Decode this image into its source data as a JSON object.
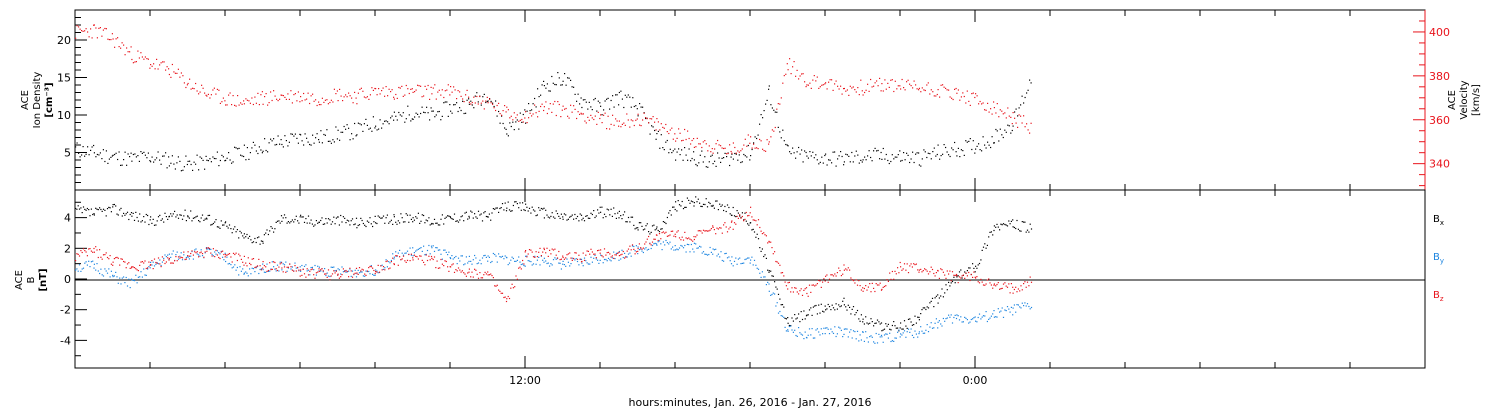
{
  "chart_data": [
    {
      "type": "scatter",
      "panel": "top",
      "left_axis_label_lines": [
        "ACE",
        "Ion Density",
        "[cm⁻³]"
      ],
      "right_axis_label_lines": [
        "ACE",
        "Velocity",
        "[km/s]"
      ],
      "ylim_left": [
        0,
        24
      ],
      "ylim_right": [
        328,
        410
      ],
      "left_ticks": [
        5,
        10,
        15,
        20
      ],
      "right_ticks": [
        340,
        360,
        380,
        400
      ],
      "grid": false,
      "series": [
        {
          "name_hidden": true,
          "axis": "left",
          "color": "#000000",
          "description_key": "density",
          "x_hours": [
            0,
            0.5,
            1,
            1.5,
            2,
            2.5,
            3,
            3.5,
            4,
            4.5,
            5,
            5.5,
            6,
            6.5,
            7,
            7.5,
            8,
            8.5,
            9,
            9.5,
            10,
            10.5,
            11,
            11.5,
            12,
            12.5,
            13,
            13.5,
            14,
            14.5,
            15,
            15.5,
            16,
            16.5,
            17,
            17.5,
            18,
            18.5,
            19,
            19.5,
            20,
            20.5,
            21,
            21.5,
            22,
            22.5,
            23,
            23.5,
            24,
            24.5,
            25,
            25.5
          ],
          "y": [
            5.5,
            5,
            4.5,
            4.2,
            4.5,
            4,
            3.5,
            3.8,
            4.5,
            5,
            6,
            6.5,
            7,
            7,
            7.5,
            8,
            9,
            9.5,
            10.5,
            10,
            11,
            11.5,
            13,
            8,
            10,
            14,
            15,
            12,
            11,
            12.5,
            11,
            7,
            5,
            4.5,
            3.8,
            4.5,
            5,
            13,
            5,
            4.5,
            4.3,
            4.2,
            4.5,
            4.6,
            4.5,
            4.3,
            5,
            5.5,
            6,
            7,
            9,
            15
          ]
        },
        {
          "name_hidden": true,
          "axis": "right",
          "color": "#e8141c",
          "description_key": "velocity",
          "x_hours": [
            0,
            0.5,
            1,
            1.5,
            2,
            2.5,
            3,
            3.5,
            4,
            4.5,
            5,
            5.5,
            6,
            6.5,
            7,
            7.5,
            8,
            8.5,
            9,
            9.5,
            10,
            10.5,
            11,
            11.5,
            12,
            12.5,
            13,
            13.5,
            14,
            14.5,
            15,
            15.5,
            16,
            16.5,
            17,
            17.5,
            18,
            18.5,
            19,
            19.5,
            20,
            20.5,
            21,
            21.5,
            22,
            22.5,
            23,
            23.5,
            24,
            24.5,
            25,
            25.5
          ],
          "y": [
            400,
            401,
            397,
            390,
            386,
            383,
            377,
            372,
            370,
            368,
            370,
            371,
            371,
            370,
            372,
            371,
            373,
            373,
            373,
            373,
            373,
            370,
            368,
            363,
            362,
            366,
            365,
            363,
            360,
            359,
            361,
            358,
            354,
            351,
            348,
            346,
            351,
            348,
            386,
            378,
            377,
            374,
            375,
            376,
            376,
            375,
            374,
            372,
            369,
            365,
            361,
            357
          ]
        }
      ]
    },
    {
      "type": "scatter",
      "panel": "bottom",
      "left_axis_label_lines": [
        "ACE",
        "B",
        "[nT]"
      ],
      "ylim": [
        -5.8,
        5.8
      ],
      "left_ticks": [
        -4,
        -2,
        0,
        2,
        4
      ],
      "zero_line": true,
      "grid": false,
      "legend_position": "right",
      "series": [
        {
          "name": "B",
          "subscript": "x",
          "color": "#000000",
          "x_hours": [
            0,
            0.5,
            1,
            1.5,
            2,
            2.5,
            3,
            3.5,
            4,
            4.5,
            5,
            5.5,
            6,
            6.5,
            7,
            7.5,
            8,
            8.5,
            9,
            9.5,
            10,
            10.5,
            11,
            11.5,
            12,
            12.5,
            13,
            13.5,
            14,
            14.5,
            15,
            15.5,
            16,
            16.5,
            17,
            17.5,
            18,
            18.5,
            19,
            19.5,
            20,
            20.5,
            21,
            21.5,
            22,
            22.5,
            23,
            23.5,
            24,
            24.5,
            25,
            25.5
          ],
          "y": [
            4.5,
            4.3,
            4.6,
            4.2,
            3.8,
            4.1,
            4.2,
            4,
            3.5,
            2.8,
            2.6,
            4,
            3.9,
            3.8,
            3.9,
            3.7,
            3.8,
            3.9,
            4.1,
            3.8,
            4,
            4.2,
            4.1,
            4.8,
            4.7,
            4.3,
            4.1,
            4,
            4.4,
            4.3,
            3.5,
            3.2,
            4.8,
            5.1,
            4.9,
            4.5,
            3.8,
            0.6,
            -2.8,
            -2.2,
            -1.8,
            -1.5,
            -2.6,
            -3,
            -3.1,
            -2.4,
            -1.2,
            0.2,
            0.8,
            3.5,
            3.6,
            3.3
          ]
        },
        {
          "name": "B",
          "subscript": "y",
          "color": "#1f86e0",
          "x_hours": [
            0,
            0.5,
            1,
            1.5,
            2,
            2.5,
            3,
            3.5,
            4,
            4.5,
            5,
            5.5,
            6,
            6.5,
            7,
            7.5,
            8,
            8.5,
            9,
            9.5,
            10,
            10.5,
            11,
            11.5,
            12,
            12.5,
            13,
            13.5,
            14,
            14.5,
            15,
            15.5,
            16,
            16.5,
            17,
            17.5,
            18,
            18.5,
            19,
            19.5,
            20,
            20.5,
            21,
            21.5,
            22,
            22.5,
            23,
            23.5,
            24,
            24.5,
            25,
            25.5
          ],
          "y": [
            0.8,
            0.9,
            0.2,
            -0.3,
            0.8,
            1.5,
            1.6,
            1.8,
            1.4,
            0.3,
            0.8,
            0.9,
            0.7,
            0.6,
            0.5,
            0.5,
            0.6,
            1.5,
            1.8,
            1.9,
            1.5,
            1.2,
            1.4,
            1.3,
            1.2,
            1.3,
            1,
            1.1,
            1.4,
            1.6,
            2,
            2.3,
            2.2,
            2.1,
            1.8,
            1.2,
            1.4,
            -0.5,
            -3.3,
            -3.6,
            -3.3,
            -3.5,
            -3.7,
            -3.9,
            -3.6,
            -3.4,
            -2.8,
            -2.5,
            -2.6,
            -2.3,
            -2,
            -1.7
          ]
        },
        {
          "name": "B",
          "subscript": "z",
          "color": "#e8141c",
          "x_hours": [
            0,
            0.5,
            1,
            1.5,
            2,
            2.5,
            3,
            3.5,
            4,
            4.5,
            5,
            5.5,
            6,
            6.5,
            7,
            7.5,
            8,
            8.5,
            9,
            9.5,
            10,
            10.5,
            11,
            11.5,
            12,
            12.5,
            13,
            13.5,
            14,
            14.5,
            15,
            15.5,
            16,
            16.5,
            17,
            17.5,
            18,
            18.5,
            19,
            19.5,
            20,
            20.5,
            21,
            21.5,
            22,
            22.5,
            23,
            23.5,
            24,
            24.5,
            25,
            25.5
          ],
          "y": [
            1.5,
            1.9,
            1.2,
            0.9,
            1,
            1.3,
            1.5,
            1.8,
            1.6,
            1.2,
            0.9,
            0.8,
            0.5,
            0.4,
            0.3,
            0.5,
            0.7,
            1.2,
            1.4,
            1.2,
            0.8,
            0.5,
            0.3,
            -1.5,
            1.6,
            1.8,
            1.5,
            1.5,
            1.8,
            1.6,
            2.1,
            2.8,
            3,
            2.8,
            3.2,
            3.5,
            4.5,
            2.5,
            -0.5,
            -0.8,
            0,
            0.7,
            -0.5,
            -0.4,
            0.8,
            0.7,
            0.4,
            0.1,
            0.2,
            -0.5,
            -0.6,
            -0.1
          ]
        }
      ]
    }
  ],
  "x_axis": {
    "title": "hours:minutes, Jan. 26, 2016 - Jan. 27, 2016",
    "xlim_hours": [
      0,
      36
    ],
    "labeled_ticks": [
      {
        "hour": 12,
        "label": "12:00"
      },
      {
        "hour": 24,
        "label": "0:00"
      }
    ],
    "minor_tick_hours": [
      2,
      4,
      6,
      8,
      10,
      14,
      16,
      18,
      20,
      22,
      26,
      28,
      30,
      32,
      34
    ]
  }
}
